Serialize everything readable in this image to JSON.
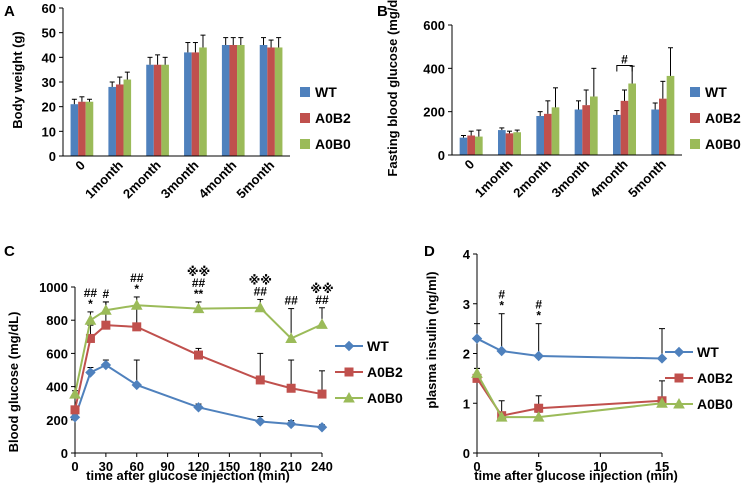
{
  "colors": {
    "WT": "#4F81BD",
    "A0B2": "#C0504D",
    "A0B0": "#9BBB59"
  },
  "chart_data": [
    {
      "panel": "A",
      "type": "bar",
      "ylabel": "Body weight (g)",
      "ylim": [
        0,
        60
      ],
      "yticks": [
        0,
        10,
        20,
        30,
        40,
        50,
        60
      ],
      "categories": [
        "0",
        "1month",
        "2month",
        "3month",
        "4month",
        "5month"
      ],
      "series": [
        {
          "name": "WT",
          "values": [
            21,
            28,
            37,
            42,
            45,
            45
          ],
          "errors": [
            2,
            2,
            3,
            4,
            3,
            3
          ]
        },
        {
          "name": "A0B2",
          "values": [
            22,
            29,
            37,
            42,
            45,
            44
          ],
          "errors": [
            2,
            3,
            4,
            4,
            3,
            3
          ]
        },
        {
          "name": "A0B0",
          "values": [
            22,
            31,
            37,
            44,
            45,
            44
          ],
          "errors": [
            1,
            3,
            3,
            5,
            3,
            4
          ]
        }
      ],
      "legend": [
        "WT",
        "A0B2",
        "A0B0"
      ]
    },
    {
      "panel": "B",
      "type": "bar",
      "ylabel": "Fasting blood glucose (mg/dL)",
      "ylim": [
        0,
        600
      ],
      "yticks": [
        0,
        200,
        400,
        600
      ],
      "categories": [
        "0",
        "1month",
        "2month",
        "3month",
        "4month",
        "5month"
      ],
      "series": [
        {
          "name": "WT",
          "values": [
            80,
            115,
            180,
            210,
            185,
            210
          ],
          "errors": [
            10,
            10,
            20,
            40,
            20,
            30
          ]
        },
        {
          "name": "A0B2",
          "values": [
            90,
            100,
            190,
            230,
            250,
            260
          ],
          "errors": [
            20,
            10,
            60,
            70,
            50,
            80
          ]
        },
        {
          "name": "A0B0",
          "values": [
            85,
            105,
            220,
            270,
            330,
            365
          ],
          "errors": [
            30,
            10,
            90,
            130,
            80,
            130
          ]
        }
      ],
      "annotations": [
        {
          "category": "4month",
          "text": "#"
        }
      ],
      "legend": [
        "WT",
        "A0B2",
        "A0B0"
      ]
    },
    {
      "panel": "C",
      "type": "line",
      "xlabel": "time after glucose injection (min)",
      "ylabel": "Blood  glucose (mg/dL)",
      "xlim": [
        0,
        240
      ],
      "ylim": [
        0,
        1000
      ],
      "xticks": [
        0,
        30,
        60,
        90,
        120,
        150,
        180,
        210,
        240
      ],
      "yticks": [
        0,
        200,
        400,
        600,
        800,
        1000
      ],
      "x": [
        0,
        15,
        30,
        60,
        120,
        180,
        210,
        240
      ],
      "series": [
        {
          "name": "WT",
          "marker": "diamond",
          "values": [
            215,
            485,
            530,
            410,
            275,
            190,
            175,
            155
          ],
          "errors": [
            20,
            30,
            30,
            150,
            20,
            30,
            20,
            15
          ]
        },
        {
          "name": "A0B2",
          "marker": "square",
          "values": [
            260,
            690,
            770,
            760,
            590,
            440,
            390,
            355
          ],
          "errors": [
            20,
            80,
            140,
            110,
            40,
            160,
            170,
            140
          ]
        },
        {
          "name": "A0B0",
          "marker": "triangle",
          "values": [
            355,
            800,
            860,
            890,
            870,
            875,
            690,
            775
          ],
          "errors": [
            20,
            50,
            50,
            50,
            40,
            50,
            180,
            100
          ]
        }
      ],
      "annotations": [
        {
          "x": 15,
          "lines": [
            "##",
            "*"
          ]
        },
        {
          "x": 30,
          "lines": [
            "#"
          ]
        },
        {
          "x": 60,
          "lines": [
            "##",
            "*"
          ]
        },
        {
          "x": 120,
          "lines": [
            "※※",
            "##",
            "**"
          ]
        },
        {
          "x": 180,
          "lines": [
            "※※",
            "##"
          ]
        },
        {
          "x": 210,
          "lines": [
            "##"
          ]
        },
        {
          "x": 240,
          "lines": [
            "※※",
            "##"
          ]
        }
      ],
      "legend": [
        "WT",
        "A0B2",
        "A0B0"
      ]
    },
    {
      "panel": "D",
      "type": "line",
      "xlabel": "time after glucose injection (min)",
      "ylabel": "plasma insulin (ng/ml)",
      "xlim": [
        0,
        15
      ],
      "ylim": [
        0,
        4
      ],
      "xticks": [
        0,
        5,
        10,
        15
      ],
      "yticks": [
        0,
        1,
        2,
        3,
        4
      ],
      "x": [
        0,
        2,
        5,
        15
      ],
      "series": [
        {
          "name": "WT",
          "marker": "diamond",
          "values": [
            2.3,
            2.05,
            1.95,
            1.9
          ],
          "errors": [
            0.3,
            0.75,
            0.65,
            0.6
          ]
        },
        {
          "name": "A0B2",
          "marker": "square",
          "values": [
            1.5,
            0.75,
            0.9,
            1.05
          ],
          "errors": [
            0.2,
            0.3,
            0.25,
            0.4
          ]
        },
        {
          "name": "A0B0",
          "marker": "triangle",
          "values": [
            1.6,
            0.72,
            0.72,
            1.0
          ],
          "errors": [
            0.1,
            0.1,
            0.1,
            0.1
          ]
        }
      ],
      "annotations": [
        {
          "x": 2,
          "lines": [
            "#",
            "*"
          ]
        },
        {
          "x": 5,
          "lines": [
            "#",
            "*"
          ]
        }
      ],
      "legend": [
        "WT",
        "A0B2",
        "A0B0"
      ]
    }
  ]
}
